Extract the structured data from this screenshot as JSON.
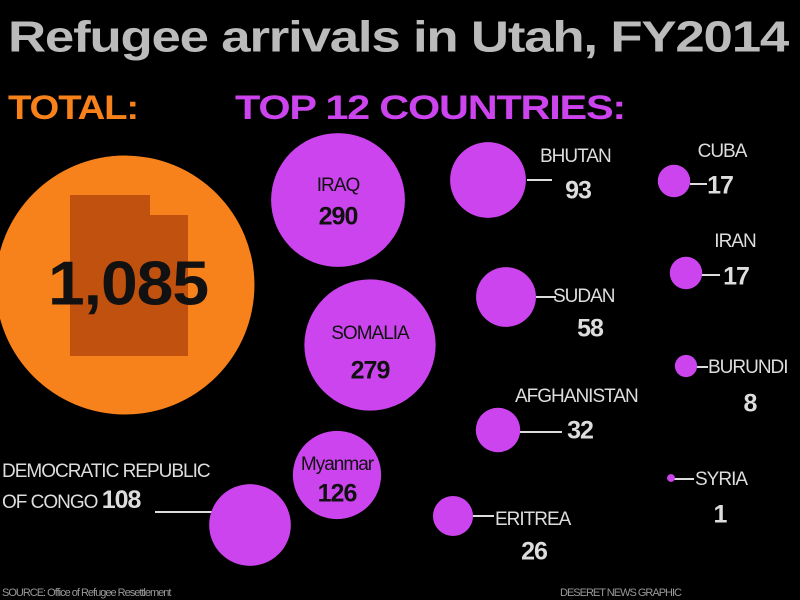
{
  "chart_data": {
    "type": "bubble",
    "title": "Refugee arrivals in Utah, FY2014",
    "total_label": "TOTAL:",
    "total": {
      "value": 1085,
      "value_label": "1,085",
      "color": "#f7821b"
    },
    "series_label": "TOP 12 COUNTRIES:",
    "color": "#cc44ee",
    "categories": [
      "IRAQ",
      "SOMALIA",
      "Myanmar",
      "DEMOCRATIC REPUBLIC OF CONGO",
      "BHUTAN",
      "SUDAN",
      "AFGHANISTAN",
      "ERITREA",
      "CUBA",
      "IRAN",
      "BURUNDI",
      "SYRIA"
    ],
    "values": [
      290,
      279,
      126,
      108,
      93,
      58,
      32,
      26,
      17,
      17,
      8,
      1
    ],
    "source": "SOURCE: Office of Refugee Resettlement",
    "credit": "DESERET NEWS GRAPHIC"
  }
}
